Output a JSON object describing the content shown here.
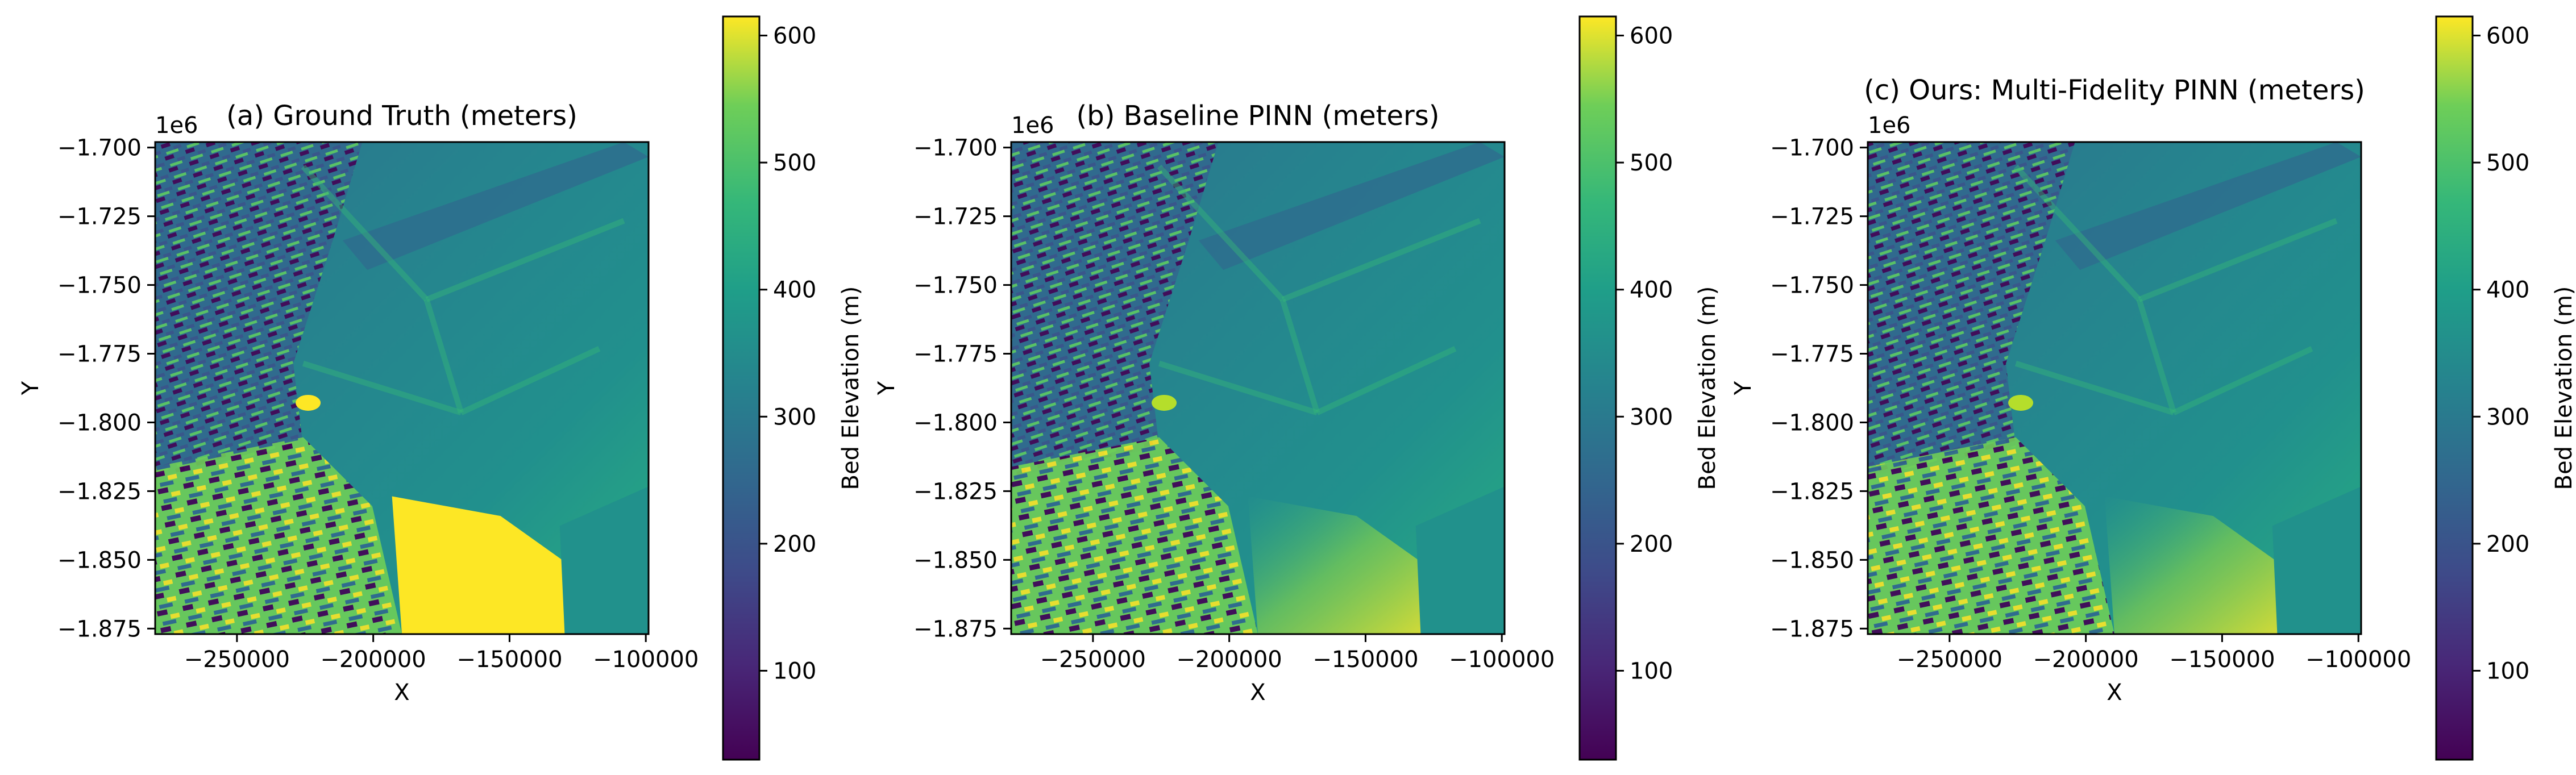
{
  "figure": {
    "type": "heatmap-grid",
    "colormap": "viridis"
  },
  "chart_data": [
    {
      "type": "heatmap",
      "title": "(a) Ground Truth (meters)",
      "xlabel": "X",
      "ylabel": "Y",
      "y_offset_label": "1e6",
      "x_ticks": [
        "−250000",
        "−200000",
        "−150000",
        "−100000"
      ],
      "x_tick_values": [
        -250000,
        -200000,
        -150000,
        -100000
      ],
      "y_ticks": [
        "−1.700",
        "−1.725",
        "−1.750",
        "−1.775",
        "−1.800",
        "−1.825",
        "−1.850",
        "−1.875"
      ],
      "y_tick_values": [
        -1.7,
        -1.725,
        -1.75,
        -1.775,
        -1.8,
        -1.825,
        -1.85,
        -1.875
      ],
      "xlim": [
        -280000,
        -99000
      ],
      "ylim": [
        -1.877,
        -1.698
      ],
      "colorbar": {
        "label": "Bed Elevation (m)",
        "range": [
          30,
          615
        ],
        "ticks": [
          "100",
          "200",
          "300",
          "400",
          "500",
          "600"
        ],
        "tick_values": [
          100,
          200,
          300,
          400,
          500,
          600
        ]
      }
    },
    {
      "type": "heatmap",
      "title": "(b) Baseline PINN (meters)",
      "xlabel": "X",
      "ylabel": "Y",
      "y_offset_label": "1e6",
      "x_ticks": [
        "−250000",
        "−200000",
        "−150000",
        "−100000"
      ],
      "x_tick_values": [
        -250000,
        -200000,
        -150000,
        -100000
      ],
      "y_ticks": [
        "−1.700",
        "−1.725",
        "−1.750",
        "−1.775",
        "−1.800",
        "−1.825",
        "−1.850",
        "−1.875"
      ],
      "y_tick_values": [
        -1.7,
        -1.725,
        -1.75,
        -1.775,
        -1.8,
        -1.825,
        -1.85,
        -1.875
      ],
      "xlim": [
        -280000,
        -99000
      ],
      "ylim": [
        -1.877,
        -1.698
      ],
      "colorbar": {
        "label": "Bed Elevation (m)",
        "range": [
          30,
          615
        ],
        "ticks": [
          "100",
          "200",
          "300",
          "400",
          "500",
          "600"
        ],
        "tick_values": [
          100,
          200,
          300,
          400,
          500,
          600
        ]
      }
    },
    {
      "type": "heatmap",
      "title": "(c) Ours: Multi-Fidelity PINN (meters)",
      "xlabel": "X",
      "ylabel": "Y",
      "y_offset_label": "1e6",
      "x_ticks": [
        "−250000",
        "−200000",
        "−150000",
        "−100000"
      ],
      "x_tick_values": [
        -250000,
        -200000,
        -150000,
        -100000
      ],
      "y_ticks": [
        "−1.700",
        "−1.725",
        "−1.750",
        "−1.775",
        "−1.800",
        "−1.825",
        "−1.850",
        "−1.875"
      ],
      "y_tick_values": [
        -1.7,
        -1.725,
        -1.75,
        -1.775,
        -1.8,
        -1.825,
        -1.85,
        -1.875
      ],
      "xlim": [
        -280000,
        -99000
      ],
      "ylim": [
        -1.877,
        -1.698
      ],
      "colorbar": {
        "label": "Bed Elevation (m)",
        "range": [
          30,
          615
        ],
        "ticks": [
          "100",
          "200",
          "300",
          "400",
          "500",
          "600"
        ],
        "tick_values": [
          100,
          200,
          300,
          400,
          500,
          600
        ]
      }
    }
  ]
}
